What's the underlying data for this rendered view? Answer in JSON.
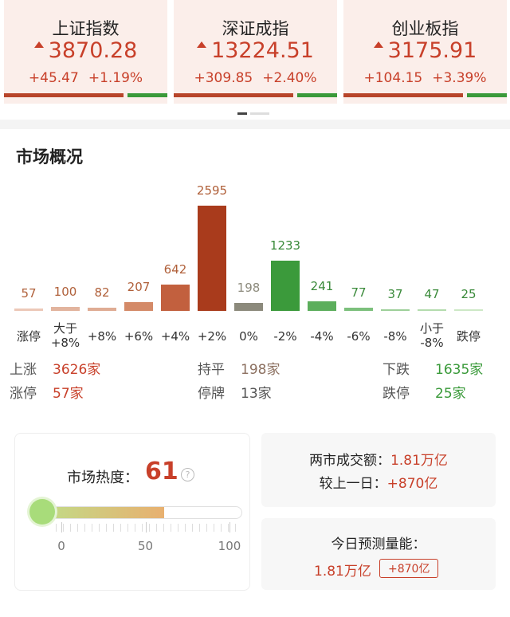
{
  "indices": [
    {
      "name": "上证指数",
      "value": "3870.28",
      "change": "+45.47",
      "percent": "+1.19%"
    },
    {
      "name": "深证成指",
      "value": "13224.51",
      "change": "+309.85",
      "percent": "+2.40%"
    },
    {
      "name": "创业板指",
      "value": "3175.91",
      "change": "+104.15",
      "percent": "+3.39%"
    }
  ],
  "section_title": "市场概况",
  "chart_data": {
    "type": "bar",
    "categories": [
      "涨停",
      "大于\n+8%",
      "+8%",
      "+6%",
      "+4%",
      "+2%",
      "0%",
      "-2%",
      "-4%",
      "-6%",
      "-8%",
      "小于\n-8%",
      "跌停"
    ],
    "values": [
      57,
      100,
      82,
      207,
      642,
      2595,
      198,
      1233,
      241,
      77,
      37,
      47,
      25
    ],
    "colors": [
      "#ecc8b8",
      "#e2b49e",
      "#dfac94",
      "#d48a68",
      "#c2603e",
      "#a93b1c",
      "#8c8a7c",
      "#3b9a3b",
      "#5cae5c",
      "#7cc07c",
      "#9ed09a",
      "#b4dcae",
      "#cde8c6"
    ]
  },
  "stats": [
    [
      {
        "label": "上涨",
        "value": "3626家"
      },
      {
        "label": "持平",
        "value": "198家"
      },
      {
        "label": "下跌",
        "value": "1635家"
      }
    ],
    [
      {
        "label": "涨停",
        "value": "57家"
      },
      {
        "label": "停牌",
        "value": "13家"
      },
      {
        "label": "跌停",
        "value": "25家"
      }
    ]
  ],
  "heat": {
    "label": "市场热度：",
    "value": 61,
    "ticks": [
      0,
      50,
      100
    ]
  },
  "turnover": {
    "label": "两市成交额：",
    "value": "1.81万亿",
    "change_label": "较上一日：",
    "change": "+870亿"
  },
  "forecast": {
    "label": "今日预测量能：",
    "value": "1.81万亿",
    "change": "+870亿"
  }
}
